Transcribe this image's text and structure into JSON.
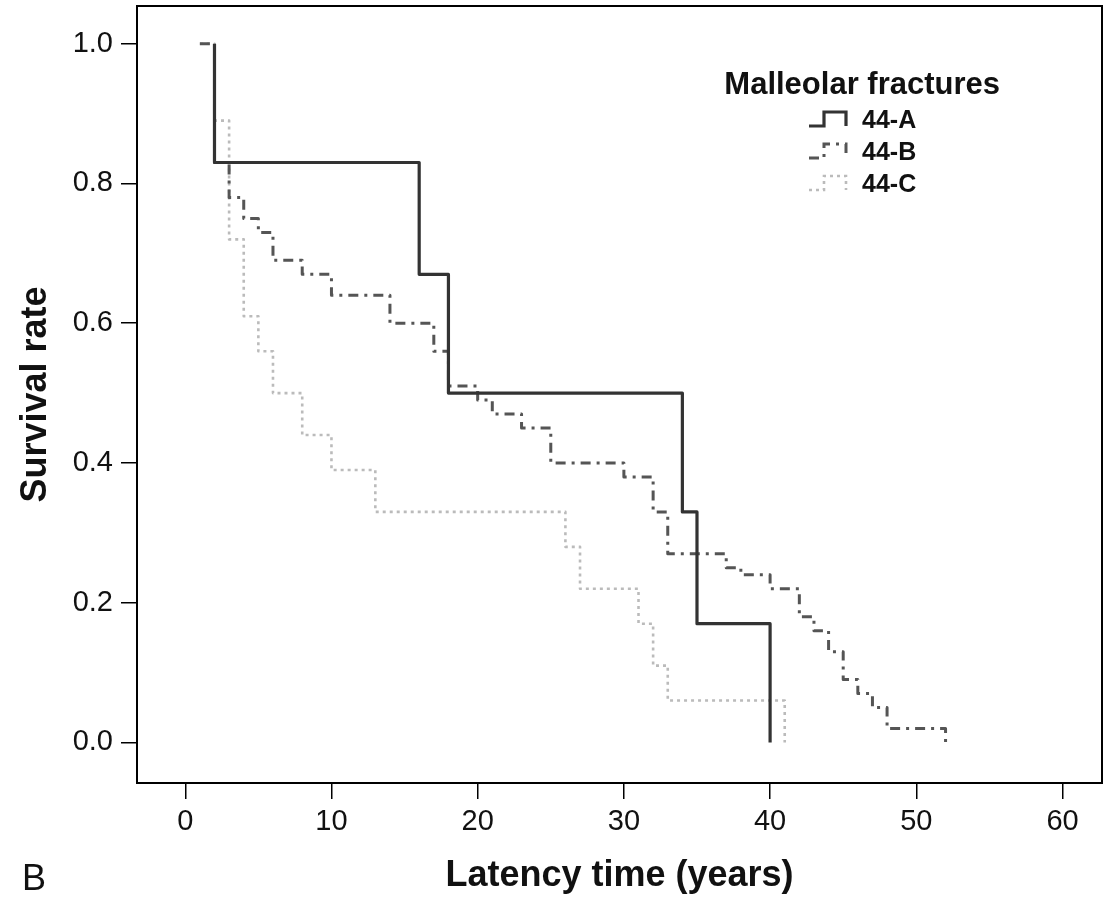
{
  "chart_data": {
    "type": "step",
    "xlabel": "Latency time (years)",
    "ylabel": "Survival rate",
    "legend_title": "Malleolar fractures",
    "legend": "top right",
    "annotations": [
      "B"
    ],
    "xlim": [
      -3.3,
      62.7
    ],
    "ylim": [
      -0.058,
      1.054
    ],
    "xticks": [
      0,
      10,
      20,
      30,
      40,
      50,
      60
    ],
    "yticks": [
      {
        "value": 0,
        "label": "0.0"
      },
      0.2,
      0.4,
      0.6,
      0.8,
      {
        "value": 1,
        "label": "1.0"
      }
    ],
    "series": [
      {
        "name": "44-A",
        "color": "#333333",
        "line_style": "solid",
        "x": [
          2,
          2,
          16,
          18,
          34,
          35,
          40
        ],
        "values": [
          1,
          0.83,
          0.67,
          0.5,
          0.33,
          0.17,
          0
        ]
      },
      {
        "name": "44-B",
        "color": "#555555",
        "line_style": "dashed",
        "x": [
          1,
          2,
          3,
          4,
          5,
          6,
          8,
          10,
          14,
          17,
          18,
          20,
          21,
          23,
          25,
          30,
          32,
          33,
          37,
          38,
          40,
          42,
          43,
          44,
          45,
          46,
          47,
          48,
          52
        ],
        "values": [
          1,
          0.83,
          0.78,
          0.75,
          0.73,
          0.69,
          0.67,
          0.64,
          0.6,
          0.56,
          0.51,
          0.49,
          0.47,
          0.45,
          0.4,
          0.38,
          0.33,
          0.27,
          0.25,
          0.24,
          0.22,
          0.18,
          0.16,
          0.13,
          0.09,
          0.07,
          0.05,
          0.02,
          0
        ]
      },
      {
        "name": "44-C",
        "color": "#bbbbbb",
        "line_style": "dotted",
        "x": [
          1,
          2,
          3,
          4,
          5,
          6,
          8,
          10,
          13,
          26,
          27,
          31,
          32,
          33,
          41
        ],
        "values": [
          1,
          0.89,
          0.72,
          0.61,
          0.56,
          0.5,
          0.44,
          0.39,
          0.33,
          0.28,
          0.22,
          0.17,
          0.11,
          0.06,
          0
        ]
      }
    ]
  }
}
